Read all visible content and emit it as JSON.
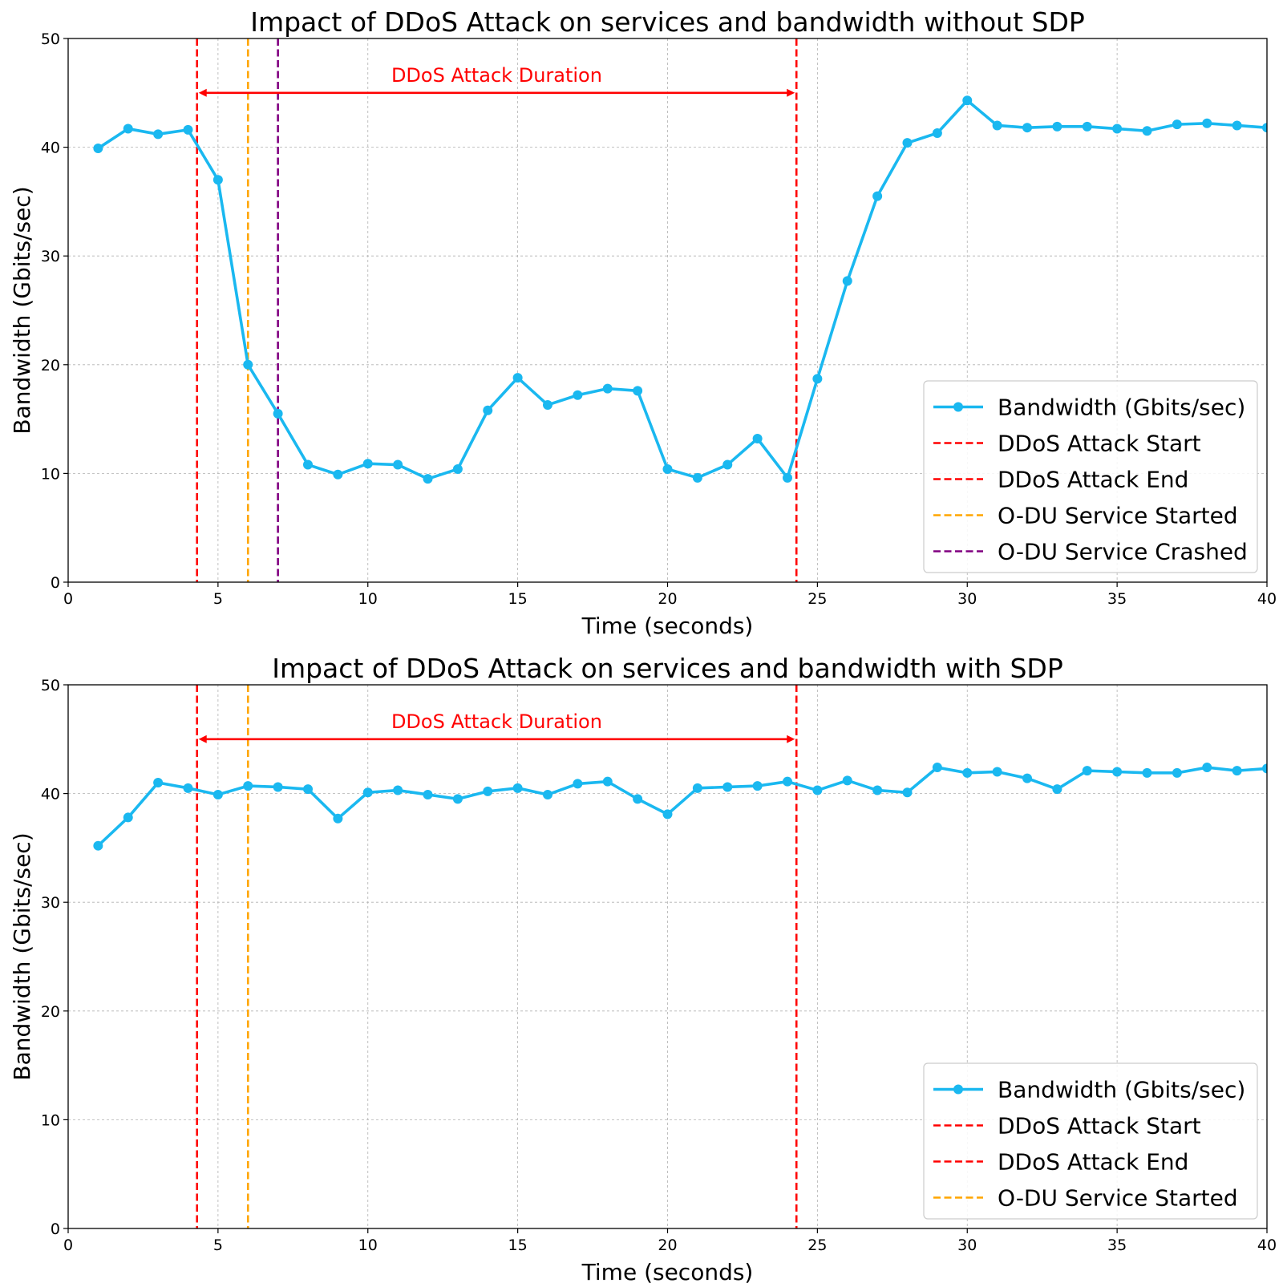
{
  "chart_data": [
    {
      "type": "line",
      "title": "Impact of DDoS Attack on services and bandwidth without SDP",
      "xlabel": "Time (seconds)",
      "ylabel": "Bandwidth (Gbits/sec)",
      "xlim": [
        0,
        40
      ],
      "ylim": [
        0,
        50
      ],
      "xticks": [
        0,
        5,
        10,
        15,
        20,
        25,
        30,
        35,
        40
      ],
      "yticks": [
        0,
        10,
        20,
        30,
        40,
        50
      ],
      "grid": true,
      "legend_position": "lower-right",
      "series": [
        {
          "name": "Bandwidth (Gbits/sec)",
          "color": "#1ab8f0",
          "marker": "circle",
          "x": [
            1,
            2,
            3,
            4,
            5,
            6,
            7,
            8,
            9,
            10,
            11,
            12,
            13,
            14,
            15,
            16,
            17,
            18,
            19,
            20,
            21,
            22,
            23,
            24,
            25,
            26,
            27,
            28,
            29,
            30,
            31,
            32,
            33,
            34,
            35,
            36,
            37,
            38,
            39,
            40
          ],
          "y": [
            39.9,
            41.7,
            41.2,
            41.6,
            37.0,
            20.0,
            15.5,
            10.8,
            9.9,
            10.9,
            10.8,
            9.5,
            10.4,
            15.8,
            18.8,
            16.3,
            17.2,
            17.8,
            17.6,
            10.4,
            9.6,
            10.8,
            13.2,
            9.6,
            18.7,
            27.7,
            35.5,
            40.4,
            41.3,
            44.3,
            42.0,
            41.8,
            41.9,
            41.9,
            41.7,
            41.5,
            42.1,
            42.2,
            42.0,
            41.8
          ]
        }
      ],
      "vlines": [
        {
          "name": "DDoS Attack Start",
          "x": 4.3,
          "color": "#ff0000"
        },
        {
          "name": "DDoS Attack End",
          "x": 24.3,
          "color": "#ff0000"
        },
        {
          "name": "O-DU Service Started",
          "x": 6.0,
          "color": "#ffa500"
        },
        {
          "name": "O-DU Service Crashed",
          "x": 7.0,
          "color": "#800080"
        }
      ],
      "annotation": {
        "text": "DDoS Attack Duration",
        "x_start": 4.3,
        "x_end": 24.3,
        "y": 45,
        "color": "#ff0000"
      }
    },
    {
      "type": "line",
      "title": "Impact of DDoS Attack on services and bandwidth with SDP",
      "xlabel": "Time (seconds)",
      "ylabel": "Bandwidth (Gbits/sec)",
      "xlim": [
        0,
        40
      ],
      "ylim": [
        0,
        50
      ],
      "xticks": [
        0,
        5,
        10,
        15,
        20,
        25,
        30,
        35,
        40
      ],
      "yticks": [
        0,
        10,
        20,
        30,
        40,
        50
      ],
      "grid": true,
      "legend_position": "lower-right",
      "series": [
        {
          "name": "Bandwidth (Gbits/sec)",
          "color": "#1ab8f0",
          "marker": "circle",
          "x": [
            1,
            2,
            3,
            4,
            5,
            6,
            7,
            8,
            9,
            10,
            11,
            12,
            13,
            14,
            15,
            16,
            17,
            18,
            19,
            20,
            21,
            22,
            23,
            24,
            25,
            26,
            27,
            28,
            29,
            30,
            31,
            32,
            33,
            34,
            35,
            36,
            37,
            38,
            39,
            40
          ],
          "y": [
            35.2,
            37.8,
            41.0,
            40.5,
            39.9,
            40.7,
            40.6,
            40.4,
            37.7,
            40.1,
            40.3,
            39.9,
            39.5,
            40.2,
            40.5,
            39.9,
            40.9,
            41.1,
            39.5,
            38.1,
            40.5,
            40.6,
            40.7,
            41.1,
            40.3,
            41.2,
            40.3,
            40.1,
            42.4,
            41.9,
            42.0,
            41.4,
            40.4,
            42.1,
            42.0,
            41.9,
            41.9,
            42.4,
            42.1,
            42.3
          ]
        }
      ],
      "vlines": [
        {
          "name": "DDoS Attack Start",
          "x": 4.3,
          "color": "#ff0000"
        },
        {
          "name": "DDoS Attack End",
          "x": 24.3,
          "color": "#ff0000"
        },
        {
          "name": "O-DU Service Started",
          "x": 6.0,
          "color": "#ffa500"
        }
      ],
      "annotation": {
        "text": "DDoS Attack Duration",
        "x_start": 4.3,
        "x_end": 24.3,
        "y": 45,
        "color": "#ff0000"
      }
    }
  ]
}
